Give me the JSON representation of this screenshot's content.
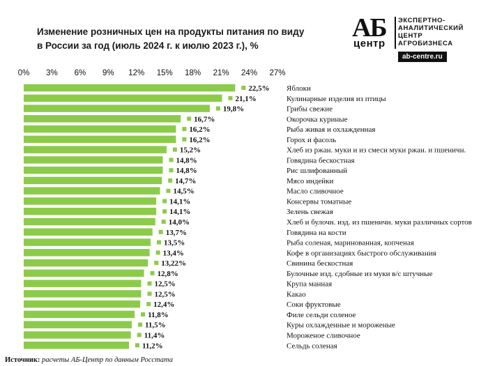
{
  "title_lines": [
    "Изменение розничных цен на продукты питания по виду",
    "в России за год (июль 2024 г. к июлю 2023 г.), %"
  ],
  "logo": {
    "mark": "АБ",
    "mark_sub": "центр",
    "lines": [
      "ЭКСПЕРТНО-",
      "АНАЛИТИЧЕСКИЙ",
      "ЦЕНТР",
      "АГРОБИЗНЕСА"
    ],
    "url": "ab-centre.ru"
  },
  "source": {
    "label": "Источник:",
    "text": "расчеты АБ-Центр по данным Росстата"
  },
  "colors": {
    "bar": "#8ccb4a",
    "marker": "#8ccb4a",
    "text": "#111111"
  },
  "chart_data": {
    "type": "bar",
    "orientation": "horizontal",
    "xlim": [
      0,
      27
    ],
    "x_ticks": [
      "0%",
      "3%",
      "6%",
      "9%",
      "12%",
      "15%",
      "18%",
      "21%",
      "24%",
      "27%"
    ],
    "x_tick_values": [
      0,
      3,
      6,
      9,
      12,
      15,
      18,
      21,
      24,
      27
    ],
    "categories": [
      "Яблоки",
      "Кулинарные изделия из птицы",
      "Грибы свежие",
      "Окорочка куриные",
      "Рыба живая и охлажденная",
      "Горох и фасоль",
      "Хлеб из ржан. муки и из смеси муки ржан. и пшеничн.",
      "Говядина бескостная",
      "Рис шлифованный",
      "Мясо индейки",
      "Масло сливочное",
      "Консервы томатные",
      "Зелень свежая",
      "Хлеб и булочн. изд. из пшеничн. муки различных сортов",
      "Говядина на кости",
      "Рыба соленая, маринованная, копченая",
      "Кофе в организациях быстрого обслуживания",
      "Свинина бескостная",
      "Булочные изд. сдобные из муки в/с штучные",
      "Крупа манная",
      "Какао",
      "Соки фруктовые",
      "Филе сельди соленое",
      "Куры охлажденные и мороженые",
      "Мороженое сливочное",
      "Сельдь соленая"
    ],
    "values": [
      22.5,
      21.1,
      19.8,
      16.7,
      16.2,
      16.2,
      15.2,
      14.8,
      14.8,
      14.7,
      14.5,
      14.1,
      14.1,
      14.0,
      13.7,
      13.5,
      13.4,
      13.22,
      12.8,
      12.5,
      12.5,
      12.4,
      11.8,
      11.5,
      11.4,
      11.2
    ],
    "labels": [
      "22,5%",
      "21,1%",
      "19,8%",
      "16,7%",
      "16,2%",
      "16,2%",
      "15,2%",
      "14,8%",
      "14,8%",
      "14,7%",
      "14,5%",
      "14,1%",
      "14,1%",
      "14,0%",
      "13,7%",
      "13,5%",
      "13,4%",
      "13,22%",
      "12,8%",
      "12,5%",
      "12,5%",
      "12,4%",
      "11,8%",
      "11,5%",
      "11,4%",
      "11,2%"
    ],
    "grid": false,
    "legend": "none"
  }
}
